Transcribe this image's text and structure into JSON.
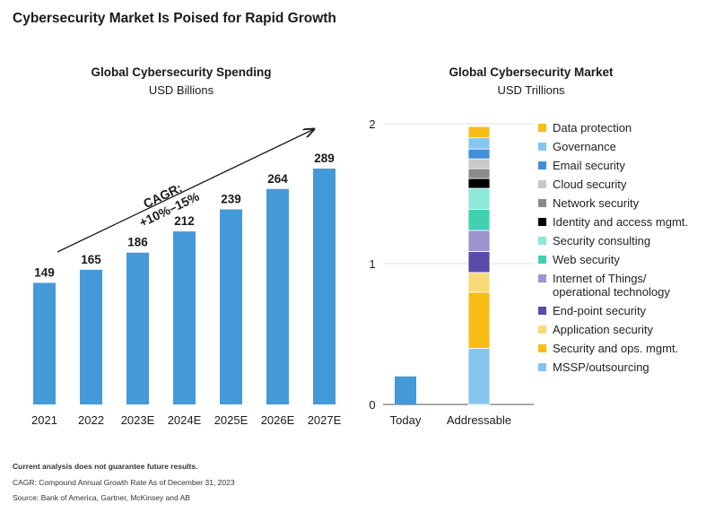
{
  "page_title": "Cybersecurity Market Is Poised for Rapid Growth",
  "footer": {
    "note": "Current analysis does not guarantee future results.",
    "cagr_def": "CAGR: Compound Annual Growth Rate As of December 31, 2023",
    "source": "Source: Bank of America, Gartner, McKinsey and AB"
  },
  "colors": {
    "bar": "#4499d8",
    "text": "#1a1a1a"
  },
  "chart_data": [
    {
      "type": "bar",
      "title": "Global Cybersecurity Spending",
      "subtitle": "USD Billions",
      "categories": [
        "2021",
        "2022",
        "2023E",
        "2024E",
        "2025E",
        "2026E",
        "2027E"
      ],
      "values": [
        149,
        165,
        186,
        212,
        239,
        264,
        289
      ],
      "annotation": {
        "line1": "CAGR:",
        "line2": "+10%–15%"
      },
      "ylim": [
        0,
        300
      ],
      "grid": false
    },
    {
      "type": "bar",
      "title": "Global Cybersecurity Market",
      "subtitle": "USD Trillions",
      "yticks": [
        "2",
        "1",
        "0"
      ],
      "ylim": [
        0,
        2
      ],
      "categories": [
        "Today",
        "Addressable"
      ],
      "today_value": 0.2,
      "legend_position": "right",
      "stack": [
        {
          "name": "MSSP/outsourcing",
          "value": 0.4,
          "color": "#86c6ee"
        },
        {
          "name": "Security and ops. mgmt.",
          "value": 0.4,
          "color": "#f6be16"
        },
        {
          "name": "Application security",
          "value": 0.14,
          "color": "#fad979"
        },
        {
          "name": "End-point security",
          "value": 0.15,
          "color": "#5b4ba9"
        },
        {
          "name": "Internet of Things/\noperational technology",
          "value": 0.15,
          "color": "#9f92d0"
        },
        {
          "name": "Web security",
          "value": 0.15,
          "color": "#40d1b3"
        },
        {
          "name": "Security consulting",
          "value": 0.15,
          "color": "#8ee8db"
        },
        {
          "name": "Identity and access  mgmt.",
          "value": 0.07,
          "color": "#000000"
        },
        {
          "name": "Network security",
          "value": 0.07,
          "color": "#8a8a8a"
        },
        {
          "name": "Cloud security",
          "value": 0.07,
          "color": "#c8c8c8"
        },
        {
          "name": "Email security",
          "value": 0.07,
          "color": "#3f8ed6"
        },
        {
          "name": "Governance",
          "value": 0.08,
          "color": "#86c6ee"
        },
        {
          "name": "Data protection",
          "value": 0.08,
          "color": "#f6be16"
        }
      ]
    }
  ]
}
